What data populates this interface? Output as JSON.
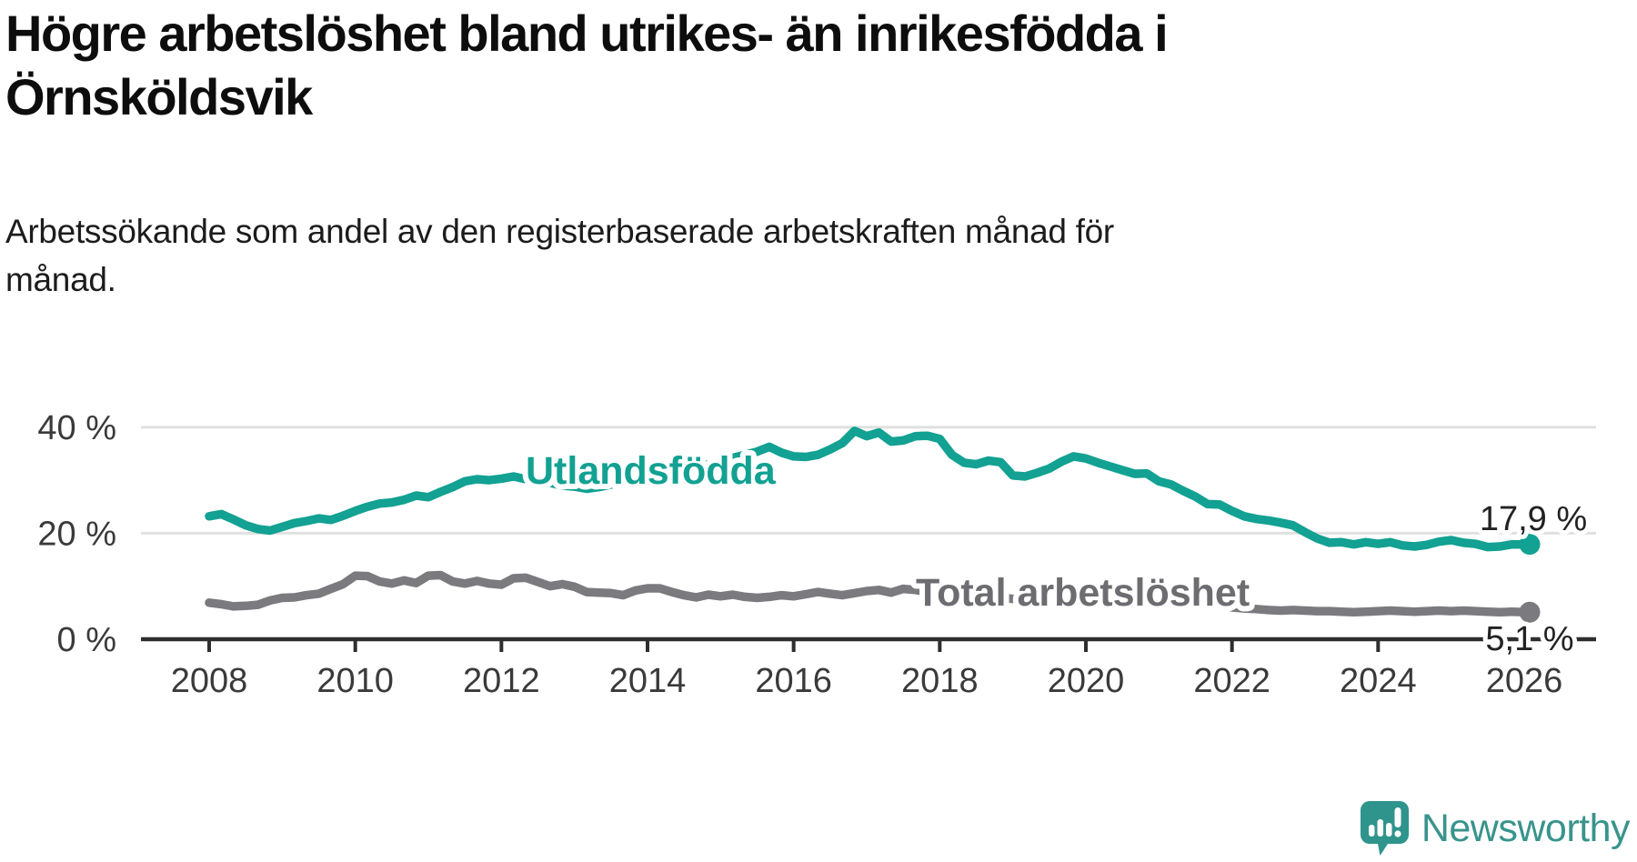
{
  "title": {
    "line1": "Högre arbetslöshet bland utrikes- än inrikesfödda i",
    "line2": "Örnsköldsvik"
  },
  "subtitle": {
    "line1": "Arbetssökande som andel av den registerbaserade arbetskraften månad för",
    "line2": "månad."
  },
  "chart_data": {
    "type": "line",
    "title": "Högre arbetslöshet bland utrikes- än inrikesfödda i Örnsköldsvik",
    "subtitle": "Arbetssökande som andel av den registerbaserade arbetskraften månad för månad.",
    "unit": "%",
    "grid": "horizontal",
    "x_axis": {
      "start_year": 2008.0,
      "step_years": 0.166667,
      "ticks": [
        2008,
        2010,
        2012,
        2014,
        2016,
        2018,
        2020,
        2022,
        2024,
        2026
      ],
      "tick_labels": [
        "2008",
        "2010",
        "2012",
        "2014",
        "2016",
        "2018",
        "2020",
        "2022",
        "2024",
        "2026"
      ]
    },
    "y_axis": {
      "ticks": [
        {
          "value": 40,
          "label": "40 %"
        },
        {
          "value": 20,
          "label": "20 %"
        },
        {
          "value": 0,
          "label": "0 %"
        }
      ],
      "range": [
        0,
        42
      ]
    },
    "colors": {
      "utlandsfodda": "#12A192",
      "total": "#7A7A7F",
      "total_label": "#6C6C71",
      "axis": "#2E2E2E",
      "gridline": "#E0E0E0",
      "tick_text": "#3A3A3A"
    },
    "series": [
      {
        "name": "Utlandsfödda",
        "label": "Utlandsfödda",
        "end_label": "17,9 %",
        "end_value": 17.9,
        "color": "#12A192",
        "values": [
          23.2,
          23.6,
          22.6,
          21.5,
          20.8,
          20.5,
          21.2,
          21.9,
          22.3,
          22.8,
          22.5,
          23.3,
          24.2,
          25.0,
          25.6,
          25.8,
          26.3,
          27.1,
          26.8,
          27.8,
          28.7,
          29.8,
          30.2,
          30.0,
          30.3,
          30.7,
          30.2,
          29.9,
          29.5,
          29.0,
          28.8,
          28.4,
          28.7,
          29.2,
          29.6,
          30.1,
          30.4,
          30.8,
          31.2,
          31.8,
          32.4,
          33.0,
          33.6,
          34.2,
          34.8,
          35.4,
          36.3,
          35.2,
          34.5,
          34.4,
          34.8,
          35.8,
          37.0,
          39.3,
          38.3,
          39.0,
          37.3,
          37.5,
          38.3,
          38.4,
          37.8,
          34.8,
          33.3,
          33.0,
          33.7,
          33.4,
          30.9,
          30.7,
          31.4,
          32.2,
          33.5,
          34.5,
          34.1,
          33.3,
          32.6,
          31.9,
          31.2,
          31.3,
          29.8,
          29.2,
          28.0,
          26.9,
          25.5,
          25.4,
          24.2,
          23.2,
          22.7,
          22.4,
          22.0,
          21.5,
          20.2,
          19.0,
          18.2,
          18.3,
          17.9,
          18.3,
          18.0,
          18.3,
          17.7,
          17.5,
          17.8,
          18.4,
          18.7,
          18.2,
          18.0,
          17.4,
          17.5,
          17.9,
          17.9
        ]
      },
      {
        "name": "Total arbetslöshet",
        "label": "Total arbetslöshet",
        "end_label": "5,1 %",
        "end_value": 5.1,
        "color": "#7A7A7F",
        "values": [
          6.9,
          6.6,
          6.2,
          6.3,
          6.5,
          7.3,
          7.8,
          7.9,
          8.3,
          8.6,
          9.5,
          10.4,
          12.0,
          11.9,
          10.9,
          10.5,
          11.1,
          10.6,
          12.0,
          12.1,
          10.9,
          10.5,
          11.0,
          10.5,
          10.3,
          11.5,
          11.6,
          10.8,
          10.0,
          10.4,
          9.9,
          8.9,
          8.8,
          8.7,
          8.3,
          9.2,
          9.6,
          9.6,
          8.9,
          8.3,
          7.9,
          8.4,
          8.1,
          8.4,
          8.0,
          7.8,
          8.0,
          8.3,
          8.1,
          8.5,
          8.9,
          8.6,
          8.3,
          8.7,
          9.1,
          9.3,
          8.8,
          9.5,
          9.3,
          8.9,
          8.4,
          8.0,
          7.7,
          7.5,
          7.7,
          7.9,
          7.6,
          7.3,
          7.1,
          7.3,
          7.5,
          7.7,
          8.0,
          8.5,
          8.9,
          9.0,
          8.7,
          8.4,
          8.1,
          7.8,
          7.5,
          7.2,
          6.9,
          6.5,
          6.0,
          5.8,
          5.7,
          5.5,
          5.4,
          5.5,
          5.4,
          5.3,
          5.3,
          5.2,
          5.1,
          5.2,
          5.3,
          5.4,
          5.3,
          5.2,
          5.3,
          5.4,
          5.3,
          5.4,
          5.3,
          5.2,
          5.1,
          5.2,
          5.1
        ]
      }
    ]
  },
  "footer": {
    "brand": "Newsworthy"
  }
}
